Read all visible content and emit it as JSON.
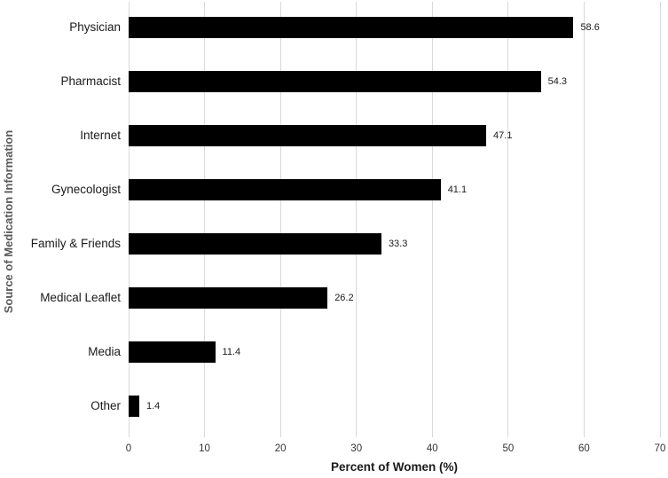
{
  "chart_data": {
    "type": "bar",
    "orientation": "horizontal",
    "title": "",
    "xlabel": "Percent of Women (%)",
    "ylabel": "Source of Medication Information",
    "categories": [
      "Physician",
      "Pharmacist",
      "Internet",
      "Gynecologist",
      "Family & Friends",
      "Medical Leaflet",
      "Media",
      "Other"
    ],
    "values": [
      58.6,
      54.3,
      47.1,
      41.1,
      33.3,
      26.2,
      11.4,
      1.4
    ],
    "value_labels": [
      "58.6",
      "54.3",
      "47.1",
      "41.1",
      "33.3",
      "26.2",
      "11.4",
      "1.4"
    ],
    "xlim": [
      0,
      70
    ],
    "xticks": [
      0,
      10,
      20,
      30,
      40,
      50,
      60,
      70
    ],
    "grid": "vertical-only",
    "legend": "none",
    "bar_color": "#000000",
    "gridline_color": "#d9d9d9"
  }
}
